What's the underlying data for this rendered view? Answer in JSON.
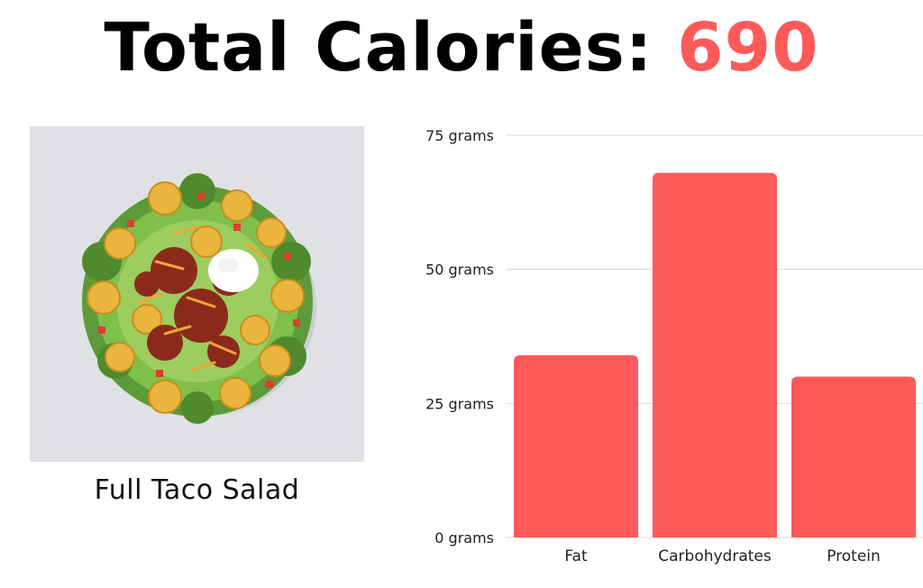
{
  "header": {
    "title_prefix": "Total Calories:",
    "calories": "690"
  },
  "item": {
    "name": "Full Taco Salad",
    "image_icon": "taco-salad-photo"
  },
  "colors": {
    "accent": "#ff5a5a",
    "grid": "#d9d9d9"
  },
  "chart_data": {
    "type": "bar",
    "categories": [
      "Fat",
      "Carbohydrates",
      "Protein"
    ],
    "values": [
      34,
      68,
      30
    ],
    "ylim": [
      0,
      75
    ],
    "yticks": [
      0,
      25,
      50,
      75
    ],
    "ytick_labels": [
      "0 grams",
      "25 grams",
      "50 grams",
      "75 grams"
    ],
    "grid": true
  }
}
